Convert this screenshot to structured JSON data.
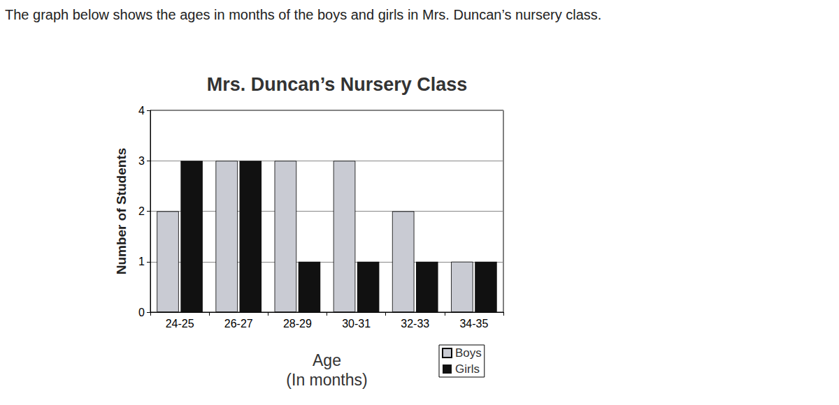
{
  "chart_data": {
    "type": "bar",
    "subtitle": "The graph below shows the ages in months of the boys and girls in Mrs. Duncan’s nursery class.",
    "title": "Mrs. Duncan’s Nursery Class",
    "xlabel": "Age\n(In months)",
    "ylabel": "Number of Students",
    "categories": [
      "24-25",
      "26-27",
      "28-29",
      "30-31",
      "32-33",
      "34-35"
    ],
    "series": [
      {
        "name": "Boys",
        "color": "#c9cbd3",
        "values": [
          2,
          3,
          3,
          3,
          2,
          1
        ]
      },
      {
        "name": "Girls",
        "color": "#111111",
        "values": [
          3,
          3,
          1,
          1,
          1,
          1
        ]
      }
    ],
    "ylim": [
      0,
      4
    ],
    "yticks": [
      0,
      1,
      2,
      3,
      4
    ],
    "grid": true,
    "legend": "lower right"
  }
}
